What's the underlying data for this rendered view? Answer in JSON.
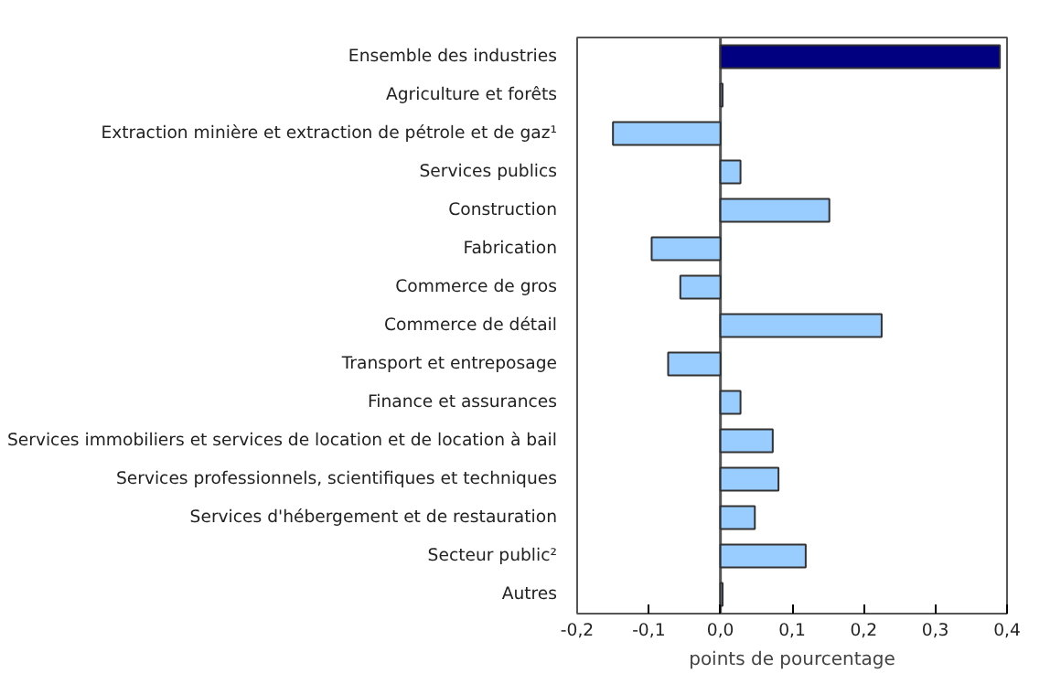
{
  "chart_data": {
    "type": "bar",
    "orientation": "horizontal",
    "xlabel": "points de pourcentage",
    "categories": [
      "Ensemble des industries",
      "Agriculture et forêts",
      "Extraction minière et extraction de pétrole et de gaz¹",
      "Services publics",
      "Construction",
      "Fabrication",
      "Commerce de gros",
      "Commerce de détail",
      "Transport et entreposage",
      "Finance et assurances",
      "Services immobiliers et services de location et de location à bail",
      "Services professionnels, scientifiques et techniques",
      "Services d'hébergement et de restauration",
      "Secteur public²",
      "Autres"
    ],
    "values": [
      0.39,
      0.003,
      -0.15,
      0.028,
      0.152,
      -0.096,
      -0.056,
      0.225,
      -0.073,
      0.028,
      0.073,
      0.081,
      0.048,
      0.119,
      0.003
    ],
    "colors": [
      "#000080",
      "#99ccff",
      "#99ccff",
      "#99ccff",
      "#99ccff",
      "#99ccff",
      "#99ccff",
      "#99ccff",
      "#99ccff",
      "#99ccff",
      "#99ccff",
      "#99ccff",
      "#99ccff",
      "#99ccff",
      "#99ccff"
    ],
    "xlim": [
      -0.2,
      0.4
    ],
    "xticks": [
      {
        "value": -0.2,
        "label": "-0,2"
      },
      {
        "value": -0.1,
        "label": "-0,1"
      },
      {
        "value": 0.0,
        "label": "0,0"
      },
      {
        "value": 0.1,
        "label": "0,1"
      },
      {
        "value": 0.2,
        "label": "0,2"
      },
      {
        "value": 0.3,
        "label": "0,3"
      },
      {
        "value": 0.4,
        "label": "0,4"
      }
    ],
    "ref_lines": [
      {
        "axis": "x",
        "value": 0,
        "color": "#555555"
      }
    ],
    "grid": false
  }
}
